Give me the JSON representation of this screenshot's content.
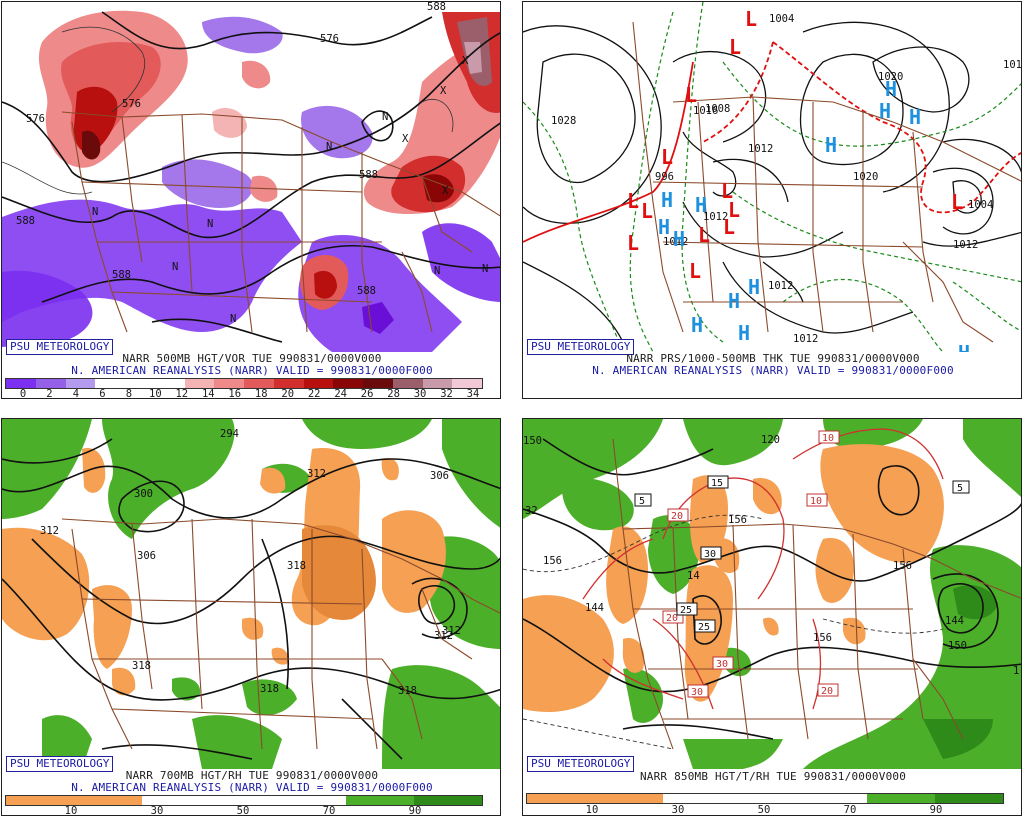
{
  "panels": [
    {
      "id": "tl",
      "badge": "PSU METEOROLOGY",
      "caption1": "NARR 500MB HGT/VOR TUE 990831/0000V000",
      "caption2": "N. AMERICAN REANALYSIS (NARR) VALID = 990831/0000F000",
      "colorbar": {
        "colors": [
          "#7b2ff0",
          "#9460e8",
          "#b59bf0",
          "#ffffff",
          "#ffffff",
          "#ffffff",
          "#f4b4b4",
          "#ee8a8a",
          "#e35a5a",
          "#d32e2e",
          "#b80f0f",
          "#8a0606",
          "#6b0a0a",
          "#9a5f6a",
          "#c99aaa",
          "#f0c8d6"
        ],
        "ticks": [
          "0",
          "2",
          "4",
          "6",
          "8",
          "10",
          "12",
          "14",
          "16",
          "18",
          "20",
          "22",
          "24",
          "26",
          "28",
          "30",
          "32",
          "34"
        ]
      },
      "labels": [
        "576",
        "576",
        "588",
        "588",
        "576",
        "588",
        "588",
        "588",
        "N",
        "N",
        "N",
        "N",
        "N",
        "N",
        "N",
        "N",
        "X",
        "X",
        "X",
        "X"
      ]
    },
    {
      "id": "tr",
      "badge": "PSU METEOROLOGY",
      "caption1": "NARR PRS/1000-500MB THK TUE 990831/0000V000",
      "caption2": "N. AMERICAN REANALYSIS (NARR) VALID = 990831/0000F000",
      "labels": [
        "1028",
        "1004",
        "1012",
        "1012",
        "1020",
        "1012",
        "1012",
        "1008",
        "1012",
        "996",
        "1012",
        "1004",
        "1016",
        "1012",
        "1020"
      ],
      "highs": [
        "H",
        "H",
        "H",
        "H",
        "H",
        "H",
        "H",
        "H",
        "H",
        "H",
        "H",
        "H",
        "H"
      ],
      "lows": [
        "L",
        "L",
        "L",
        "L",
        "L",
        "L",
        "L",
        "L",
        "L",
        "L",
        "L",
        "L",
        "L"
      ],
      "high_color": "#1e90e0",
      "low_color": "#e01010"
    },
    {
      "id": "bl",
      "badge": "PSU METEOROLOGY",
      "caption1": "NARR 700MB HGT/RH TUE 990831/0000V000",
      "caption2": "N. AMERICAN REANALYSIS (NARR) VALID = 990831/0000F000",
      "colorbar": {
        "colors": [
          "#f5a052",
          "#f5a052",
          "#ffffff",
          "#ffffff",
          "#ffffff",
          "#4caf2a",
          "#2e8b1a"
        ],
        "ticks": [
          "10",
          "30",
          "50",
          "70",
          "90"
        ]
      },
      "labels": [
        "312",
        "300",
        "306",
        "312",
        "306",
        "318",
        "312",
        "318",
        "318",
        "318",
        "294",
        "312"
      ]
    },
    {
      "id": "br",
      "badge": "PSU METEOROLOGY",
      "caption1": "NARR 850MB HGT/T/RH TUE 990831/0000V000",
      "caption2": "",
      "colorbar": {
        "colors": [
          "#f5a052",
          "#f5a052",
          "#ffffff",
          "#ffffff",
          "#ffffff",
          "#4caf2a",
          "#2e8b1a"
        ],
        "ticks": [
          "10",
          "30",
          "50",
          "70",
          "90"
        ]
      },
      "labels": [
        "32",
        "156",
        "156",
        "156",
        "150",
        "144",
        "156",
        "14",
        "150",
        "120",
        "144",
        "1"
      ],
      "boxes": [
        "10",
        "10",
        "5",
        "5",
        "15",
        "20",
        "20",
        "30",
        "25",
        "25",
        "30",
        "30",
        "20",
        "20",
        "30"
      ]
    }
  ]
}
